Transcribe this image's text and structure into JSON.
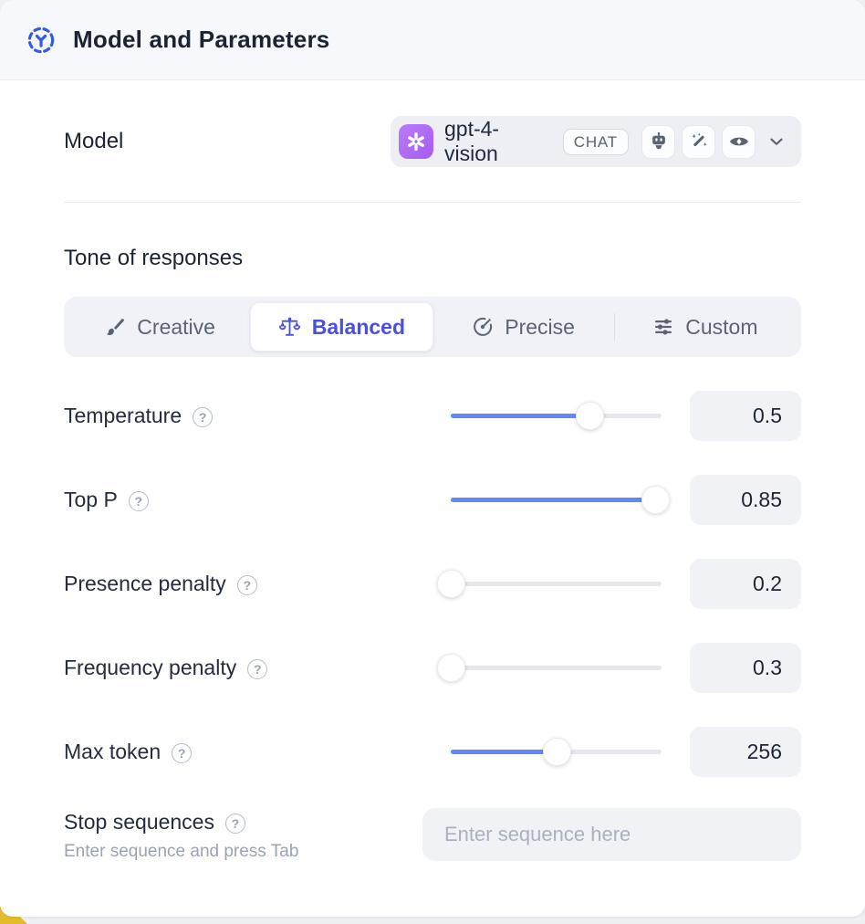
{
  "header": {
    "title": "Model and Parameters",
    "icon": "ai-model-hub-icon",
    "icon_color": "#2f5ce6"
  },
  "model": {
    "label": "Model",
    "selected_model": "gpt-4-vision",
    "provider_icon": "openai-logo",
    "provider_color": "#a95ef3",
    "type_badge": "CHAT",
    "capability_icons": [
      "robot-assistant-icon",
      "magic-wand-icon",
      "vision-eye-icon"
    ],
    "dropdown_icon": "chevron-down-icon"
  },
  "tone": {
    "title": "Tone of responses",
    "options": [
      {
        "label": "Creative",
        "icon": "paintbrush-icon",
        "selected": false
      },
      {
        "label": "Balanced",
        "icon": "balance-scale-icon",
        "selected": true
      },
      {
        "label": "Precise",
        "icon": "target-dart-icon",
        "selected": false
      },
      {
        "label": "Custom",
        "icon": "sliders-icon",
        "selected": false
      }
    ],
    "selected_color": "#4a4fe0"
  },
  "sliders": [
    {
      "label": "Temperature",
      "value": "0.5",
      "percent": 66
    },
    {
      "label": "Top P",
      "value": "0.85",
      "percent": 97
    },
    {
      "label": "Presence penalty",
      "value": "0.2",
      "percent": 0
    },
    {
      "label": "Frequency penalty",
      "value": "0.3",
      "percent": 0
    },
    {
      "label": "Max token",
      "value": "256",
      "percent": 50
    }
  ],
  "slider_color": "#6687fb",
  "help_icon_glyph": "?",
  "stop_sequences": {
    "label": "Stop sequences",
    "hint": "Enter sequence and press Tab",
    "placeholder": "Enter sequence here"
  }
}
